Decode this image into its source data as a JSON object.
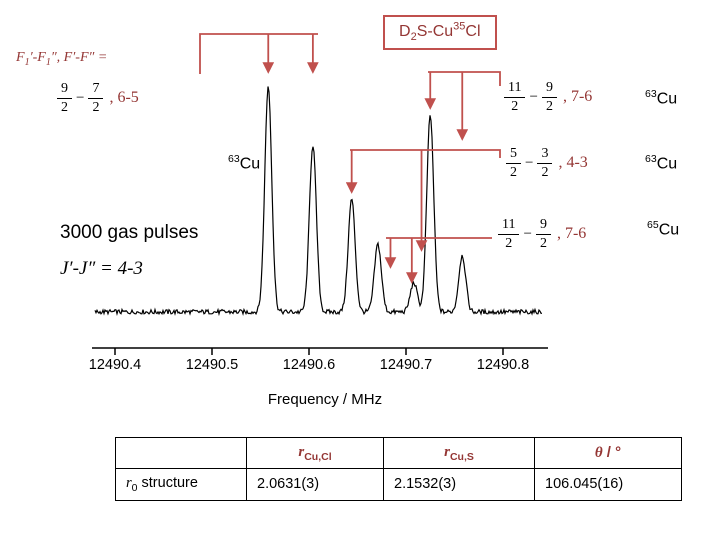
{
  "title": {
    "p1": "D",
    "sub": "2",
    "p2": "S-Cu",
    "sup": "35",
    "p3": "Cl"
  },
  "hyperfine_header": {
    "p1": "F",
    "s1": "1",
    "p2": "′-F",
    "s2": "1",
    "p3": "″, F′-F″ ="
  },
  "symbols": {
    "minus": "−"
  },
  "notes": {
    "gas_pulses": "3000 gas pulses",
    "j_label": "J′-J″ = 4-3"
  },
  "transitions": [
    {
      "n1": "9",
      "d1": "2",
      "n2": "7",
      "d2": "2",
      "label": ", 6-5"
    },
    {
      "n1": "11",
      "d1": "2",
      "n2": "9",
      "d2": "2",
      "label": ", 7-6"
    },
    {
      "n1": "5",
      "d1": "2",
      "n2": "3",
      "d2": "2",
      "label": ", 4-3"
    },
    {
      "n1": "11",
      "d1": "2",
      "n2": "9",
      "d2": "2",
      "label": ", 7-6"
    }
  ],
  "isotopes": [
    {
      "mass": "63",
      "symbol": "Cu"
    },
    {
      "mass": "63",
      "symbol": "Cu"
    },
    {
      "mass": "63",
      "symbol": "Cu"
    },
    {
      "mass": "65",
      "symbol": "Cu"
    }
  ],
  "chart_data": {
    "type": "line",
    "title": "D2S-Cu35Cl microwave spectrum, J'-J'' = 4-3, 3000 gas pulses",
    "xlabel": "Frequency / MHz",
    "x_tick_labels": [
      "12490.4",
      "12490.5",
      "12490.6",
      "12490.7",
      "12490.8"
    ],
    "x_range": [
      12490.38,
      12490.85
    ],
    "y_axis": "intensity (arbitrary units, axis not shown)",
    "peaks": [
      {
        "frequency": 12490.558,
        "intensity": 1.0
      },
      {
        "frequency": 12490.604,
        "intensity": 0.74
      },
      {
        "frequency": 12490.644,
        "intensity": 0.5
      },
      {
        "frequency": 12490.671,
        "intensity": 0.3
      },
      {
        "frequency": 12490.708,
        "intensity": 0.13
      },
      {
        "frequency": 12490.725,
        "intensity": 0.87
      },
      {
        "frequency": 12490.758,
        "intensity": 0.25
      }
    ],
    "annotations": [
      {
        "label": "F1 9/2-7/2, F 6-5 (63Cu)",
        "arrow_frequencies": [
          12490.558,
          12490.604
        ]
      },
      {
        "label": "F1 11/2-9/2, F 7-6 (63Cu)",
        "arrow_frequencies": [
          12490.725,
          12490.758
        ]
      },
      {
        "label": "F1 5/2-3/2, F 4-3 (63Cu)",
        "arrow_frequencies": [
          12490.644,
          12490.716
        ]
      },
      {
        "label": "F1 11/2-9/2, F 7-6 (65Cu)",
        "arrow_frequencies": [
          12490.684,
          12490.706
        ]
      }
    ]
  },
  "table": {
    "headers": [
      {
        "base": "r",
        "sub": "Cu,Cl"
      },
      {
        "base": "r",
        "sub": "Cu,S"
      },
      {
        "base": "θ",
        "rest": " / °"
      }
    ],
    "row_label": {
      "base": "r",
      "sub": "0",
      "rest": " structure"
    },
    "values": [
      "2.0631(3)",
      "2.1532(3)",
      "106.045(16)"
    ]
  },
  "colors": {
    "accent_line": "#c0504d",
    "accent_text": "#943634",
    "trace": "#000000"
  }
}
